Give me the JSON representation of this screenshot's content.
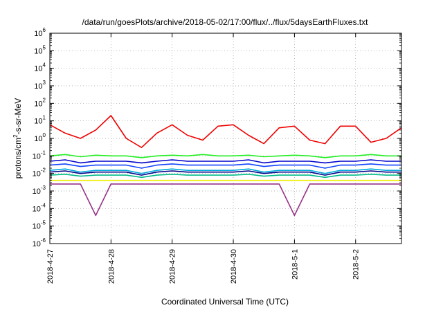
{
  "chart_data": {
    "type": "line",
    "title": "/data/run/goesPlots/archive/2018-05-02/17:00/flux/../flux/5daysEarthFluxes.txt",
    "xlabel": "Coordinated Universal Time (UTC)",
    "ylabel_main": "protons/cm",
    "ylabel_sup": "2",
    "ylabel_tail": "-s-sr-MeV",
    "yscale": "log",
    "grid": true,
    "ylim": [
      1e-06,
      1000000.0
    ],
    "xlim": [
      "2018-04-27T00:00",
      "2018-05-02T18:00"
    ],
    "x_ticks": [
      "2018-4-27",
      "2018-4-28",
      "2018-4-29",
      "2018-4-30",
      "2018-5-1",
      "2018-5-2"
    ],
    "y_ticks": [
      {
        "base": "10",
        "exp": "-6"
      },
      {
        "base": "10",
        "exp": "-5"
      },
      {
        "base": "10",
        "exp": "-4"
      },
      {
        "base": "10",
        "exp": "-3"
      },
      {
        "base": "10",
        "exp": "-2"
      },
      {
        "base": "10",
        "exp": "-1"
      },
      {
        "base": "10",
        "exp": "0"
      },
      {
        "base": "10",
        "exp": "1"
      },
      {
        "base": "10",
        "exp": "2"
      },
      {
        "base": "10",
        "exp": "3"
      },
      {
        "base": "10",
        "exp": "4"
      },
      {
        "base": "10",
        "exp": "5"
      },
      {
        "base": "10",
        "exp": "6"
      }
    ],
    "series": [
      {
        "color": "#ee0000",
        "x": [
          "2018-04-27T00:00",
          "2018-04-27T06:00",
          "2018-04-27T12:00",
          "2018-04-27T18:00",
          "2018-04-28T00:00",
          "2018-04-28T06:00",
          "2018-04-28T12:00",
          "2018-04-28T18:00",
          "2018-04-29T00:00",
          "2018-04-29T06:00",
          "2018-04-29T12:00",
          "2018-04-29T18:00",
          "2018-04-30T00:00",
          "2018-04-30T06:00",
          "2018-04-30T12:00",
          "2018-04-30T18:00",
          "2018-05-01T00:00",
          "2018-05-01T06:00",
          "2018-05-01T12:00",
          "2018-05-01T18:00",
          "2018-05-02T00:00",
          "2018-05-02T06:00",
          "2018-05-02T12:00",
          "2018-05-02T18:00"
        ],
        "values": [
          6,
          2,
          1,
          3,
          20,
          1,
          0.3,
          2,
          6,
          1.5,
          0.8,
          5,
          6,
          1.5,
          0.5,
          4,
          5,
          0.8,
          0.5,
          5,
          5,
          0.6,
          1,
          4
        ]
      },
      {
        "color": "#22ee22",
        "x": [
          "2018-04-27T00:00",
          "2018-04-27T06:00",
          "2018-04-27T12:00",
          "2018-04-27T18:00",
          "2018-04-28T00:00",
          "2018-04-28T06:00",
          "2018-04-28T12:00",
          "2018-04-28T18:00",
          "2018-04-29T00:00",
          "2018-04-29T06:00",
          "2018-04-29T12:00",
          "2018-04-29T18:00",
          "2018-04-30T00:00",
          "2018-04-30T06:00",
          "2018-04-30T12:00",
          "2018-04-30T18:00",
          "2018-05-01T00:00",
          "2018-05-01T06:00",
          "2018-05-01T12:00",
          "2018-05-01T18:00",
          "2018-05-02T00:00",
          "2018-05-02T06:00",
          "2018-05-02T12:00",
          "2018-05-02T18:00"
        ],
        "values": [
          0.1,
          0.12,
          0.09,
          0.11,
          0.1,
          0.1,
          0.08,
          0.1,
          0.11,
          0.1,
          0.12,
          0.1,
          0.1,
          0.11,
          0.09,
          0.1,
          0.11,
          0.1,
          0.08,
          0.1,
          0.1,
          0.12,
          0.1,
          0.1
        ]
      },
      {
        "color": "#0000cc",
        "x": [
          "2018-04-27T00:00",
          "2018-04-27T06:00",
          "2018-04-27T12:00",
          "2018-04-27T18:00",
          "2018-04-28T00:00",
          "2018-04-28T06:00",
          "2018-04-28T12:00",
          "2018-04-28T18:00",
          "2018-04-29T00:00",
          "2018-04-29T06:00",
          "2018-04-29T12:00",
          "2018-04-29T18:00",
          "2018-04-30T00:00",
          "2018-04-30T06:00",
          "2018-04-30T12:00",
          "2018-04-30T18:00",
          "2018-05-01T00:00",
          "2018-05-01T06:00",
          "2018-05-01T12:00",
          "2018-05-01T18:00",
          "2018-05-02T00:00",
          "2018-05-02T06:00",
          "2018-05-02T12:00",
          "2018-05-02T18:00"
        ],
        "values": [
          0.05,
          0.06,
          0.04,
          0.05,
          0.05,
          0.05,
          0.04,
          0.05,
          0.06,
          0.05,
          0.05,
          0.05,
          0.05,
          0.06,
          0.04,
          0.05,
          0.05,
          0.05,
          0.04,
          0.05,
          0.05,
          0.06,
          0.05,
          0.05
        ]
      },
      {
        "color": "#1144ff",
        "x": [
          "2018-04-27T00:00",
          "2018-04-27T06:00",
          "2018-04-27T12:00",
          "2018-04-27T18:00",
          "2018-04-28T00:00",
          "2018-04-28T06:00",
          "2018-04-28T12:00",
          "2018-04-28T18:00",
          "2018-04-29T00:00",
          "2018-04-29T06:00",
          "2018-04-29T12:00",
          "2018-04-29T18:00",
          "2018-04-30T00:00",
          "2018-04-30T06:00",
          "2018-04-30T12:00",
          "2018-04-30T18:00",
          "2018-05-01T00:00",
          "2018-05-01T06:00",
          "2018-05-01T12:00",
          "2018-05-01T18:00",
          "2018-05-02T00:00",
          "2018-05-02T06:00",
          "2018-05-02T12:00",
          "2018-05-02T18:00"
        ],
        "values": [
          0.03,
          0.035,
          0.025,
          0.03,
          0.03,
          0.03,
          0.02,
          0.03,
          0.035,
          0.03,
          0.03,
          0.03,
          0.03,
          0.035,
          0.025,
          0.03,
          0.03,
          0.03,
          0.02,
          0.03,
          0.03,
          0.035,
          0.03,
          0.03
        ]
      },
      {
        "color": "#00aadd",
        "x": [
          "2018-04-27T00:00",
          "2018-04-27T06:00",
          "2018-04-27T12:00",
          "2018-04-27T18:00",
          "2018-04-28T00:00",
          "2018-04-28T06:00",
          "2018-04-28T12:00",
          "2018-04-28T18:00",
          "2018-04-29T00:00",
          "2018-04-29T06:00",
          "2018-04-29T12:00",
          "2018-04-29T18:00",
          "2018-04-30T00:00",
          "2018-04-30T06:00",
          "2018-04-30T12:00",
          "2018-04-30T18:00",
          "2018-05-01T00:00",
          "2018-05-01T06:00",
          "2018-05-01T12:00",
          "2018-05-01T18:00",
          "2018-05-02T00:00",
          "2018-05-02T06:00",
          "2018-05-02T12:00",
          "2018-05-02T18:00"
        ],
        "values": [
          0.015,
          0.018,
          0.012,
          0.015,
          0.015,
          0.015,
          0.01,
          0.015,
          0.018,
          0.015,
          0.015,
          0.015,
          0.015,
          0.018,
          0.012,
          0.015,
          0.015,
          0.015,
          0.01,
          0.015,
          0.015,
          0.018,
          0.015,
          0.015
        ]
      },
      {
        "color": "#000088",
        "x": [
          "2018-04-27T00:00",
          "2018-04-27T06:00",
          "2018-04-27T12:00",
          "2018-04-27T18:00",
          "2018-04-28T00:00",
          "2018-04-28T06:00",
          "2018-04-28T12:00",
          "2018-04-28T18:00",
          "2018-04-29T00:00",
          "2018-04-29T06:00",
          "2018-04-29T12:00",
          "2018-04-29T18:00",
          "2018-04-30T00:00",
          "2018-04-30T06:00",
          "2018-04-30T12:00",
          "2018-04-30T18:00",
          "2018-05-01T00:00",
          "2018-05-01T06:00",
          "2018-05-01T12:00",
          "2018-05-01T18:00",
          "2018-05-02T00:00",
          "2018-05-02T06:00",
          "2018-05-02T12:00",
          "2018-05-02T18:00"
        ],
        "values": [
          0.012,
          0.014,
          0.01,
          0.012,
          0.012,
          0.012,
          0.008,
          0.012,
          0.014,
          0.012,
          0.012,
          0.012,
          0.012,
          0.014,
          0.01,
          0.012,
          0.012,
          0.012,
          0.008,
          0.012,
          0.012,
          0.014,
          0.012,
          0.012
        ]
      },
      {
        "color": "#00bb88",
        "x": [
          "2018-04-27T00:00",
          "2018-04-27T06:00",
          "2018-04-27T12:00",
          "2018-04-27T18:00",
          "2018-04-28T00:00",
          "2018-04-28T06:00",
          "2018-04-28T12:00",
          "2018-04-28T18:00",
          "2018-04-29T00:00",
          "2018-04-29T06:00",
          "2018-04-29T12:00",
          "2018-04-29T18:00",
          "2018-04-30T00:00",
          "2018-04-30T06:00",
          "2018-04-30T12:00",
          "2018-04-30T18:00",
          "2018-05-01T00:00",
          "2018-05-01T06:00",
          "2018-05-01T12:00",
          "2018-05-01T18:00",
          "2018-05-02T00:00",
          "2018-05-02T06:00",
          "2018-05-02T12:00",
          "2018-05-02T18:00"
        ],
        "values": [
          0.008,
          0.009,
          0.007,
          0.008,
          0.008,
          0.008,
          0.006,
          0.008,
          0.009,
          0.008,
          0.008,
          0.008,
          0.008,
          0.009,
          0.007,
          0.008,
          0.008,
          0.008,
          0.006,
          0.008,
          0.008,
          0.009,
          0.008,
          0.008
        ]
      },
      {
        "color": "#eeee00",
        "x": [
          "2018-04-27T00:00",
          "2018-04-27T06:00",
          "2018-04-27T12:00",
          "2018-04-27T18:00",
          "2018-04-28T00:00",
          "2018-04-28T06:00",
          "2018-04-28T12:00",
          "2018-04-28T18:00",
          "2018-04-29T00:00",
          "2018-04-29T06:00",
          "2018-04-29T12:00",
          "2018-04-29T18:00",
          "2018-04-30T00:00",
          "2018-04-30T06:00",
          "2018-04-30T12:00",
          "2018-04-30T18:00",
          "2018-05-01T00:00",
          "2018-05-01T06:00",
          "2018-05-01T12:00",
          "2018-05-01T18:00",
          "2018-05-02T00:00",
          "2018-05-02T06:00",
          "2018-05-02T12:00",
          "2018-05-02T18:00"
        ],
        "values": [
          0.004,
          0.004,
          0.004,
          0.004,
          0.004,
          0.004,
          0.004,
          0.004,
          0.004,
          0.004,
          0.004,
          0.004,
          0.004,
          0.004,
          0.004,
          0.004,
          0.004,
          0.004,
          0.004,
          0.004,
          0.004,
          0.004,
          0.004,
          0.004
        ]
      },
      {
        "color": "#993388",
        "x": [
          "2018-04-27T00:00",
          "2018-04-27T06:00",
          "2018-04-27T12:00",
          "2018-04-27T18:00",
          "2018-04-28T00:00",
          "2018-04-28T06:00",
          "2018-04-28T12:00",
          "2018-04-28T18:00",
          "2018-04-29T00:00",
          "2018-04-29T06:00",
          "2018-04-29T12:00",
          "2018-04-29T18:00",
          "2018-04-30T00:00",
          "2018-04-30T06:00",
          "2018-04-30T12:00",
          "2018-04-30T18:00",
          "2018-05-01T00:00",
          "2018-05-01T06:00",
          "2018-05-01T12:00",
          "2018-05-01T18:00",
          "2018-05-02T00:00",
          "2018-05-02T06:00",
          "2018-05-02T12:00",
          "2018-05-02T18:00"
        ],
        "values": [
          0.0025,
          0.0025,
          0.0025,
          4e-05,
          0.0025,
          0.0025,
          0.0025,
          0.0025,
          0.0025,
          0.0025,
          0.0025,
          0.0025,
          0.0025,
          0.0025,
          0.0025,
          0.0025,
          4e-05,
          0.0025,
          0.0025,
          0.0025,
          0.0025,
          0.0025,
          0.0025,
          0.0025
        ]
      }
    ]
  }
}
